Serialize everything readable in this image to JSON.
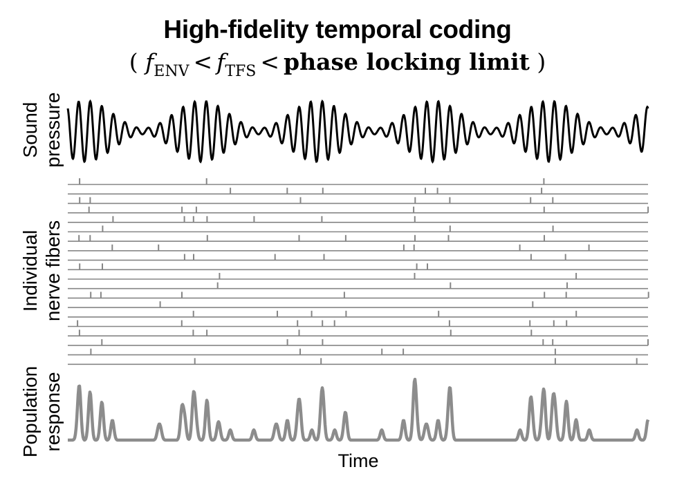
{
  "title": "High-fidelity temporal coding",
  "subtitle": {
    "open": "(",
    "f_env": "f",
    "env_sub": "ENV",
    "lt1": "<",
    "f_tfs": "f",
    "tfs_sub": "TFS",
    "lt2": "<",
    "limit": "phase locking limit",
    "close": ")"
  },
  "panels": {
    "sound": {
      "label_line1": "Sound",
      "label_line2": "pressure",
      "envelope_cycles": 5,
      "carrier_cycles_per_envelope": 10
    },
    "fibers": {
      "label_line1": "Individual",
      "label_line2": "nerve fibers",
      "fiber_count": 20
    },
    "population": {
      "label_line1": "Population",
      "label_line2": "response"
    }
  },
  "xlabel": "Time",
  "colors": {
    "waveform": "#000000",
    "raster": "#858585",
    "population": "#8c8c8c"
  }
}
